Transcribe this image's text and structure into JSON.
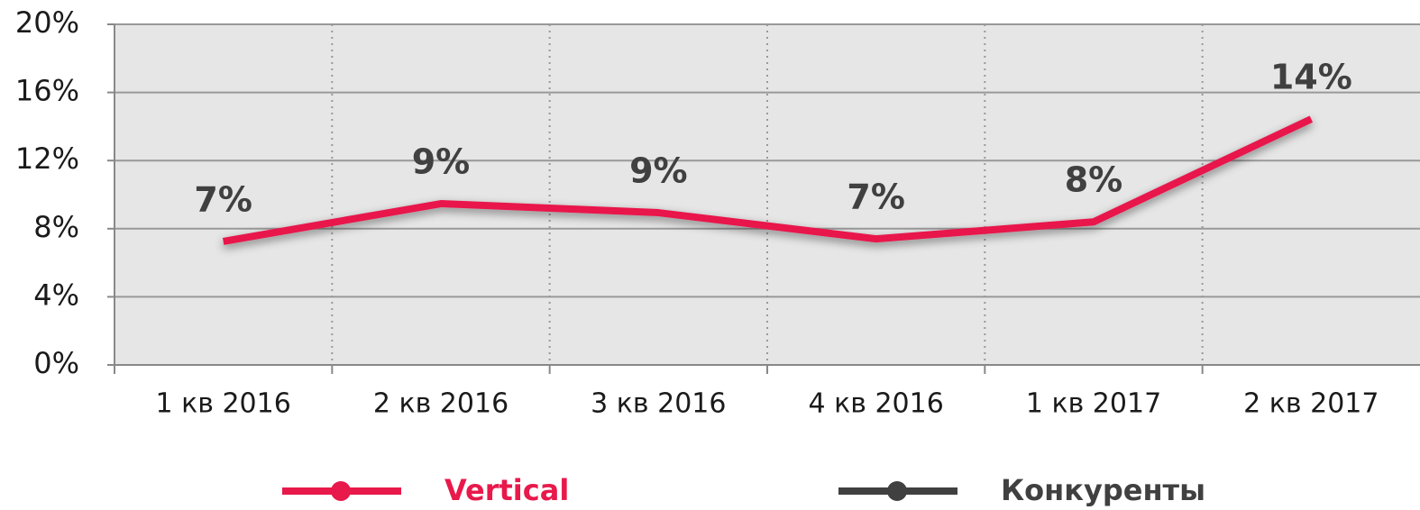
{
  "chart_data": {
    "type": "line",
    "categories": [
      "1 кв 2016",
      "2 кв 2016",
      "3 кв 2016",
      "4 кв 2016",
      "1 кв 2017",
      "2 кв 2017"
    ],
    "series": [
      {
        "name": "Vertical",
        "color": "#e8194b",
        "values": [
          7.25,
          9.47,
          8.94,
          7.4,
          8.4,
          14.44
        ],
        "value_labels": [
          "7%",
          "9%",
          "9%",
          "7%",
          "8%",
          "14%"
        ]
      },
      {
        "name": "Конкуренты",
        "color": "#404040",
        "values": [
          null,
          null,
          null,
          null,
          null,
          null
        ]
      }
    ],
    "ylim": [
      0,
      20
    ],
    "yticks": [
      {
        "value": 0,
        "label": "0%"
      },
      {
        "value": 4,
        "label": "4%"
      },
      {
        "value": 8,
        "label": "8%"
      },
      {
        "value": 12,
        "label": "12%"
      },
      {
        "value": 16,
        "label": "16%"
      },
      {
        "value": 20,
        "label": "20%"
      }
    ],
    "grid": true
  }
}
